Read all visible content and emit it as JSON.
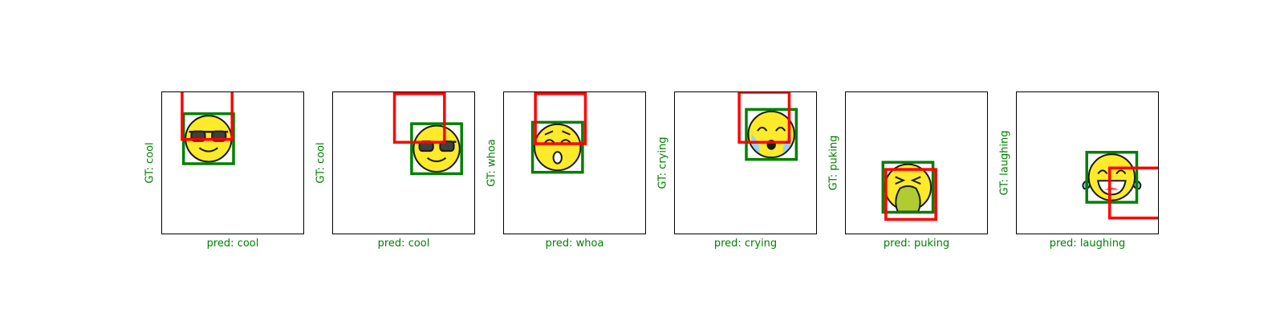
{
  "figure": {
    "panels": [
      {
        "gt_label": "GT: cool",
        "pred_label": "pred: cool",
        "emoji_icon": "cool-face-icon",
        "gt_box": [
          0.15,
          0.15,
          0.5,
          0.5
        ],
        "pred_box": [
          0.14,
          -0.05,
          0.49,
          0.33
        ]
      },
      {
        "gt_label": "GT: cool",
        "pred_label": "pred: cool",
        "emoji_icon": "cool-face-icon",
        "gt_box": [
          0.55,
          0.22,
          0.9,
          0.57
        ],
        "pred_box": [
          0.43,
          0.01,
          0.78,
          0.35
        ]
      },
      {
        "gt_label": "GT: whoa",
        "pred_label": "pred: whoa",
        "emoji_icon": "whoa-face-icon",
        "gt_box": [
          0.2,
          0.21,
          0.55,
          0.56
        ],
        "pred_box": [
          0.22,
          0.01,
          0.57,
          0.36
        ]
      },
      {
        "gt_label": "GT: crying",
        "pred_label": "pred: crying",
        "emoji_icon": "crying-face-icon",
        "gt_box": [
          0.5,
          0.12,
          0.85,
          0.47
        ],
        "pred_box": [
          0.45,
          0.0,
          0.8,
          0.35
        ]
      },
      {
        "gt_label": "GT: puking",
        "pred_label": "pred: puking",
        "emoji_icon": "puking-face-icon",
        "gt_box": [
          0.26,
          0.49,
          0.61,
          0.84
        ],
        "pred_box": [
          0.28,
          0.54,
          0.63,
          0.89
        ]
      },
      {
        "gt_label": "GT: laughing",
        "pred_label": "pred: laughing",
        "emoji_icon": "laughing-face-icon",
        "gt_box": [
          0.49,
          0.42,
          0.84,
          0.77
        ],
        "pred_box": [
          0.65,
          0.53,
          1.0,
          0.88
        ]
      }
    ],
    "colors": {
      "gt_box": "#008000",
      "pred_box": "#ff0000",
      "label_text": "#008000",
      "emoji_fill": "#fcea2b",
      "emoji_outline": "#1a1a1a"
    }
  }
}
